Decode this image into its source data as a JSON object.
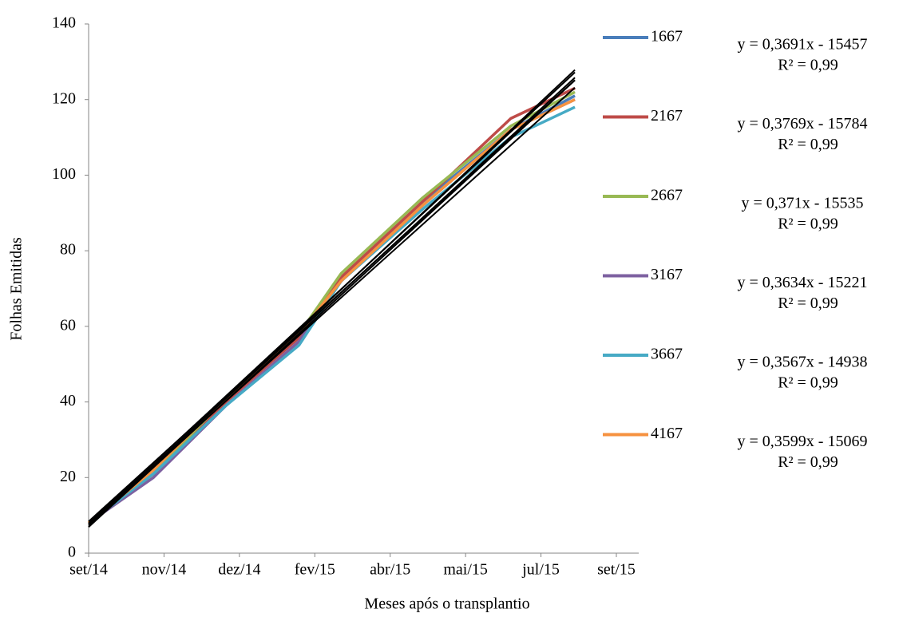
{
  "chart_data": {
    "type": "line",
    "x_label": "Meses após o transplantio",
    "y_label": "Folhas Emitidas",
    "xlim": [
      0,
      7.3
    ],
    "xticks": [
      {
        "value": 0,
        "label": "set/14"
      },
      {
        "value": 1,
        "label": "nov/14"
      },
      {
        "value": 2,
        "label": "dez/14"
      },
      {
        "value": 3,
        "label": "fev/15"
      },
      {
        "value": 4,
        "label": "abr/15"
      },
      {
        "value": 5,
        "label": "mai/15"
      },
      {
        "value": 6,
        "label": "jul/15"
      },
      {
        "value": 7,
        "label": "set/15"
      }
    ],
    "ylim": [
      0,
      140
    ],
    "yticks": [
      0,
      20,
      40,
      60,
      80,
      100,
      120,
      140
    ],
    "grid": false,
    "trendline": true,
    "trendline_color": "#000000",
    "x": [
      0,
      0.86,
      1.82,
      2.79,
      3.35,
      4.43,
      5.6,
      6.45
    ],
    "series": [
      {
        "name": "1667",
        "color": "#4a7ebb",
        "values": [
          8,
          21,
          40,
          57,
          72,
          93,
          112,
          121
        ],
        "equation": "y = 0,3691x - 15457",
        "r2": "R² = 0,99"
      },
      {
        "name": "2167",
        "color": "#be4b48",
        "values": [
          8,
          21,
          40,
          57,
          73,
          93,
          115,
          123
        ],
        "equation": "y = 0,3769x - 15784",
        "r2": "R² = 0,99"
      },
      {
        "name": "2667",
        "color": "#98b954",
        "values": [
          8,
          21,
          41,
          58,
          74,
          94,
          113,
          122
        ],
        "equation": "y = 0,371x - 15535",
        "r2": "R² = 0,99"
      },
      {
        "name": "3167",
        "color": "#7d60a0",
        "values": [
          8,
          20,
          39,
          56,
          72,
          92,
          112,
          120
        ],
        "equation": "y = 0,3634x - 15221",
        "r2": "R² = 0,99"
      },
      {
        "name": "3667",
        "color": "#46aac5",
        "values": [
          8,
          21,
          39,
          55,
          72,
          91,
          110,
          118
        ],
        "equation": "y = 0,3567x - 14938",
        "r2": "R² = 0,99"
      },
      {
        "name": "4167",
        "color": "#f69240",
        "values": [
          8,
          22,
          41,
          58,
          72,
          92,
          112,
          120
        ],
        "equation": "y = 0,3599x - 15069",
        "r2": "R² = 0,99"
      }
    ]
  }
}
